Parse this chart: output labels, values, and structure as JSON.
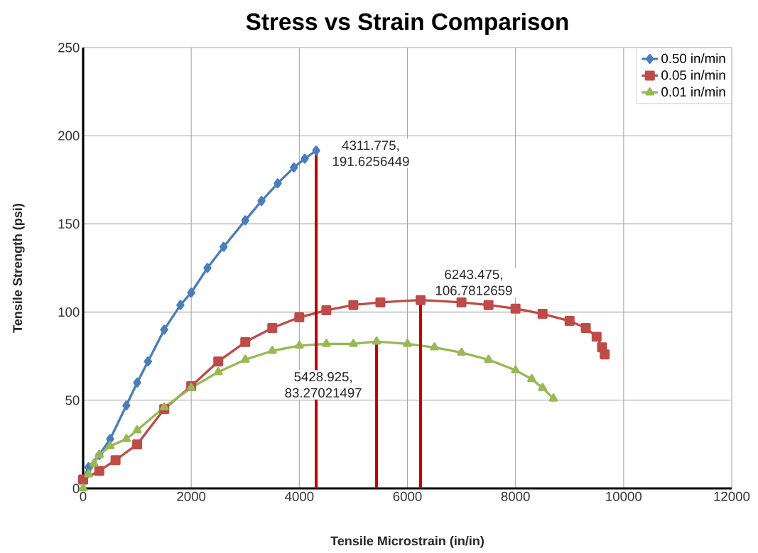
{
  "chart_data": {
    "type": "line",
    "title": "Stress vs Strain Comparison",
    "xlabel": "Tensile Microstrain (in/in)",
    "ylabel": "Tensile Strength (psi)",
    "xlim": [
      0,
      12000
    ],
    "xticks": [
      0,
      2000,
      4000,
      6000,
      8000,
      10000,
      12000
    ],
    "ylim": [
      0,
      250
    ],
    "yticks": [
      0,
      50,
      100,
      150,
      200,
      250
    ],
    "grid": true,
    "legend": "top right",
    "line_style": "solid",
    "series": [
      {
        "name": "0.50 in/min",
        "color": "#4a7ebb",
        "marker": "diamond",
        "x": [
          0,
          100,
          300,
          500,
          800,
          1000,
          1200,
          1500,
          1800,
          2000,
          2300,
          2600,
          3000,
          3300,
          3600,
          3900,
          4100,
          4311.775
        ],
        "values": [
          5,
          12,
          19,
          28,
          47,
          60,
          72,
          90,
          104,
          111,
          125,
          137,
          152,
          163,
          173,
          182,
          187,
          191.6
        ]
      },
      {
        "name": "0.05 in/min",
        "color": "#be4b48",
        "marker": "square",
        "x": [
          0,
          300,
          600,
          1000,
          1500,
          2000,
          2500,
          3000,
          3500,
          4000,
          4500,
          5000,
          5500,
          6243.475,
          7000,
          7500,
          8000,
          8500,
          9000,
          9300,
          9500,
          9600,
          9650
        ],
        "values": [
          5,
          10,
          16,
          25,
          45,
          58,
          72,
          83,
          91,
          97,
          101,
          104,
          105.5,
          106.8,
          105.5,
          104,
          102,
          99,
          95,
          91,
          86,
          80,
          76
        ]
      },
      {
        "name": "0.01 in/min",
        "color": "#98b954",
        "marker": "triangle",
        "x": [
          0,
          100,
          200,
          300,
          500,
          800,
          1000,
          1500,
          2000,
          2500,
          3000,
          3500,
          4000,
          4500,
          5000,
          5428.925,
          6000,
          6500,
          7000,
          7500,
          8000,
          8300,
          8500,
          8700
        ],
        "values": [
          0,
          8,
          14,
          19,
          24,
          28,
          33,
          46,
          57,
          66,
          73,
          78,
          81,
          82,
          82,
          83.3,
          82,
          80,
          77,
          73,
          67,
          62,
          57,
          51
        ]
      },
      {
        "type": "line",
        "color": "#c00000",
        "marker": "none",
        "x": [
          4311.775,
          4311.775
        ],
        "values": [
          0,
          191.6
        ]
      },
      {
        "type": "line",
        "color": "#c00000",
        "marker": "none",
        "x": [
          5428.925,
          5428.925
        ],
        "values": [
          0,
          83.3
        ]
      },
      {
        "type": "line",
        "color": "#c00000",
        "marker": "none",
        "x": [
          6243.475,
          6243.475
        ],
        "values": [
          0,
          106.8
        ]
      }
    ],
    "annotations": [
      {
        "text": "4311.775, 191.6256449",
        "x": 4311.775,
        "y": 191.6256449
      },
      {
        "text": "6243.475, 106.7812659",
        "x": 6243.475,
        "y": 106.7812659
      },
      {
        "text": "5428.925, 83.27021497",
        "x": 5428.925,
        "y": 83.27021497
      }
    ]
  }
}
